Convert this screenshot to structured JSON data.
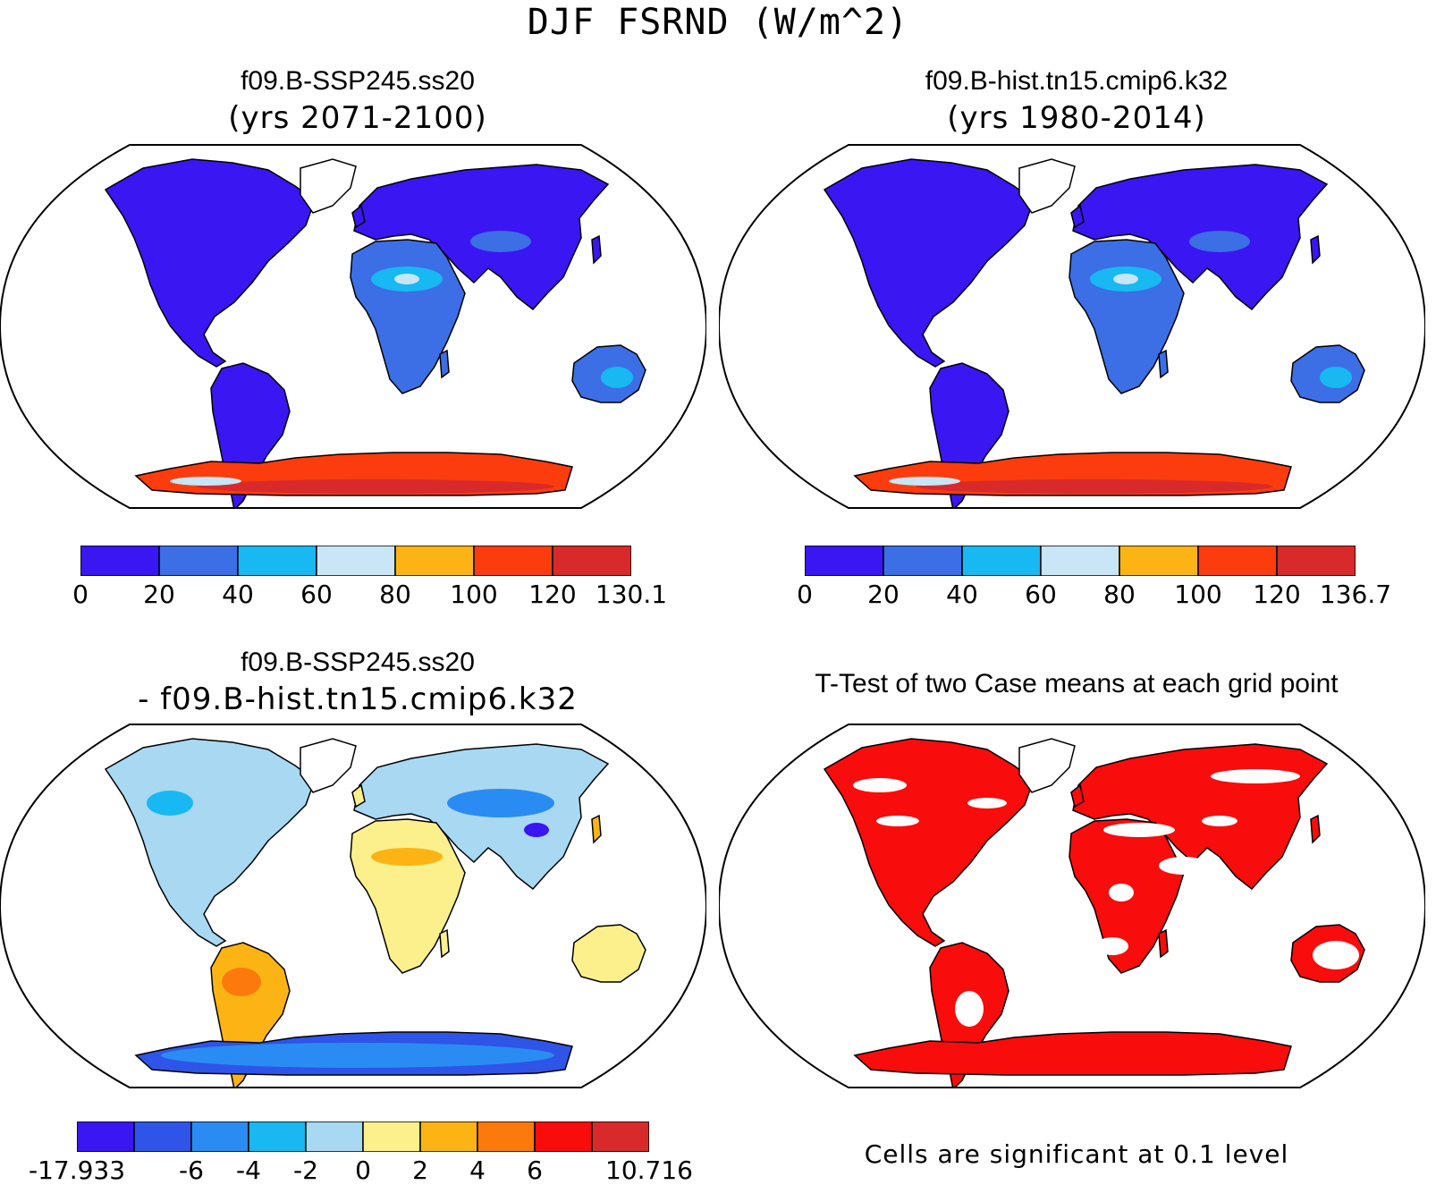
{
  "figure": {
    "title": "DJF FSRND (W/m^2)"
  },
  "panels": [
    {
      "id": "case1",
      "title": "f09.B-SSP245.ss20",
      "subtitle": "(yrs 2071-2100)",
      "colorbar": {
        "labels": [
          "0",
          "20",
          "40",
          "60",
          "80",
          "100",
          "120",
          "130.1"
        ],
        "colors": [
          "#3a16f2",
          "#3c6ee6",
          "#18b8f2",
          "#c8e6f6",
          "#fbb414",
          "#fc3c0c",
          "#d82a2a"
        ]
      }
    },
    {
      "id": "case2",
      "title": "f09.B-hist.tn15.cmip6.k32",
      "subtitle": "(yrs 1980-2014)",
      "colorbar": {
        "labels": [
          "0",
          "20",
          "40",
          "60",
          "80",
          "100",
          "120",
          "136.7"
        ],
        "colors": [
          "#3a16f2",
          "#3c6ee6",
          "#18b8f2",
          "#c8e6f6",
          "#fbb414",
          "#fc3c0c",
          "#d82a2a"
        ]
      }
    },
    {
      "id": "difference",
      "title": "f09.B-SSP245.ss20",
      "subtitle": "- f09.B-hist.tn15.cmip6.k32",
      "colorbar": {
        "labels": [
          "-17.933",
          "-6",
          "-4",
          "-2",
          "0",
          "2",
          "4",
          "6",
          "10.716"
        ],
        "colors": [
          "#3a16f2",
          "#2e54e8",
          "#2a8cf2",
          "#18b8f2",
          "#a8d8f2",
          "#fcf08c",
          "#fbb414",
          "#fc7a0c",
          "#f80c0c",
          "#d82a2a"
        ]
      }
    },
    {
      "id": "ttest",
      "title": "T-Test of two Case means at each grid point",
      "note": "Cells are significant at 0.1 level",
      "significant_color": "#f80c0c"
    }
  ]
}
